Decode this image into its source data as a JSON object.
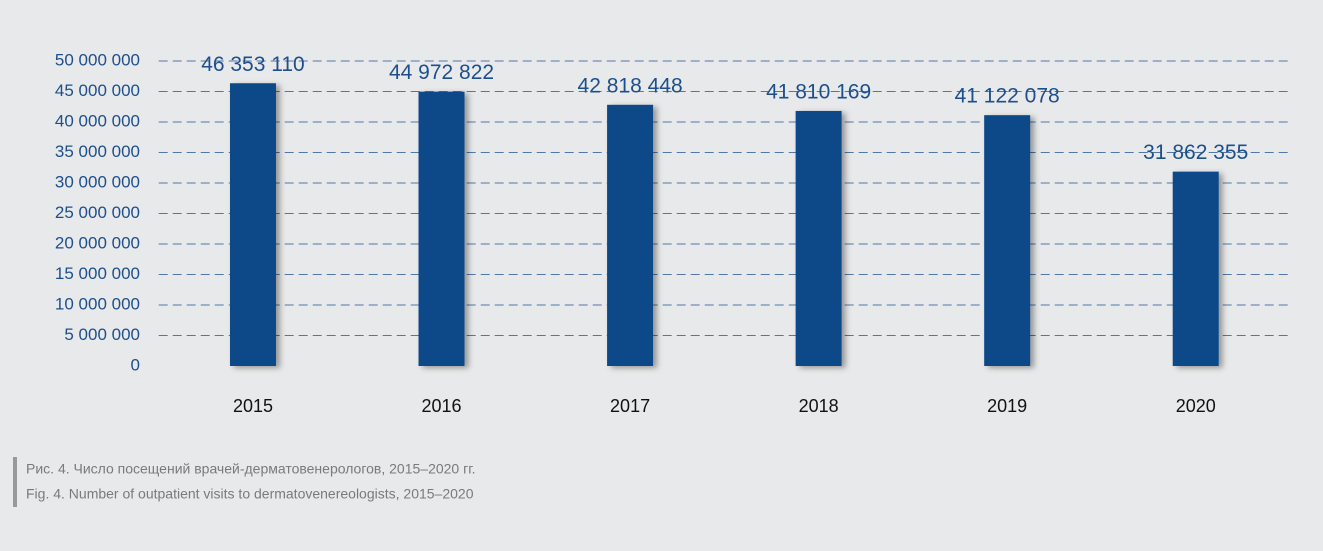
{
  "chart_data": {
    "type": "bar",
    "categories": [
      "2015",
      "2016",
      "2017",
      "2018",
      "2019",
      "2020"
    ],
    "values": [
      46353110,
      44972822,
      42818448,
      41810169,
      41122078,
      31862355
    ],
    "value_labels": [
      "46 353 110",
      "44 972 822",
      "42 818 448",
      "41 810 169",
      "41 122 078",
      "31 862 355"
    ],
    "color": "#0b4a88",
    "ylim": [
      0,
      50000000
    ],
    "yticks": [
      0,
      {
        "value": 5000000,
        "label": "5 000 000"
      },
      {
        "value": 10000000,
        "label": "10 000 000"
      },
      {
        "value": 15000000,
        "label": "15 000 000"
      },
      {
        "value": 20000000,
        "label": "20 000 000"
      },
      {
        "value": 25000000,
        "label": "25 000 000"
      },
      {
        "value": 30000000,
        "label": "30 000 000"
      },
      {
        "value": 35000000,
        "label": "35 000 000"
      },
      {
        "value": 40000000,
        "label": "40 000 000"
      },
      {
        "value": 45000000,
        "label": "45 000 000"
      },
      {
        "value": 50000000,
        "label": "50 000 000"
      }
    ],
    "grid": true,
    "captions": [
      "Рис. 4. Число посещений врачей-дерматовенерологов, 2015–2020 гг.",
      "Fig. 4. Number of outpatient visits to dermatovenereologists, 2015–2020"
    ]
  }
}
